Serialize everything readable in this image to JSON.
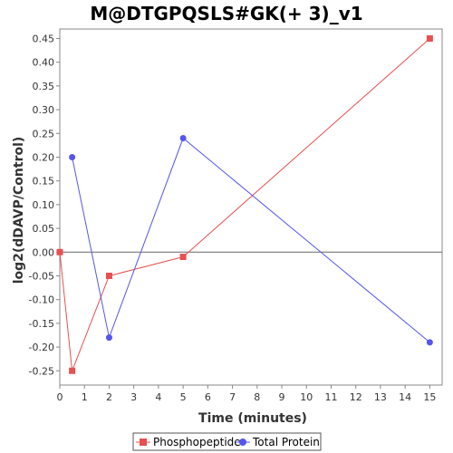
{
  "chart_data": {
    "type": "line",
    "title": "M@DTGPQSLS#GK(+ 3)_v1",
    "xlabel": "Time (minutes)",
    "ylabel": "log2(dDAVP/Control)",
    "xlim": [
      0,
      15.5
    ],
    "ylim": [
      -0.28,
      0.47
    ],
    "x_ticks": [
      0,
      1,
      2,
      3,
      4,
      5,
      6,
      7,
      8,
      9,
      10,
      11,
      12,
      13,
      14,
      15
    ],
    "y_ticks": [
      -0.25,
      -0.2,
      -0.15,
      -0.1,
      -0.05,
      0.0,
      0.05,
      0.1,
      0.15,
      0.2,
      0.25,
      0.3,
      0.35,
      0.4,
      0.45
    ],
    "y_tick_labels": [
      "-0.25",
      "-0.20",
      "-0.15",
      "-0.10",
      "-0.05",
      "0.00",
      "0.05",
      "0.10",
      "0.15",
      "0.20",
      "0.25",
      "0.30",
      "0.35",
      "0.40",
      "0.45"
    ],
    "zero_line": true,
    "grid": false,
    "legend_position": "bottom",
    "series": [
      {
        "name": "Phosphopeptide",
        "color": "#e85050",
        "marker": "square",
        "x": [
          0,
          0.5,
          2,
          5,
          15
        ],
        "y": [
          0.0,
          -0.25,
          -0.05,
          -0.01,
          0.45
        ]
      },
      {
        "name": "Total Protein",
        "color": "#5555ee",
        "marker": "circle",
        "x": [
          0.5,
          2,
          5,
          15
        ],
        "y": [
          0.2,
          -0.18,
          0.24,
          -0.19
        ]
      }
    ]
  }
}
